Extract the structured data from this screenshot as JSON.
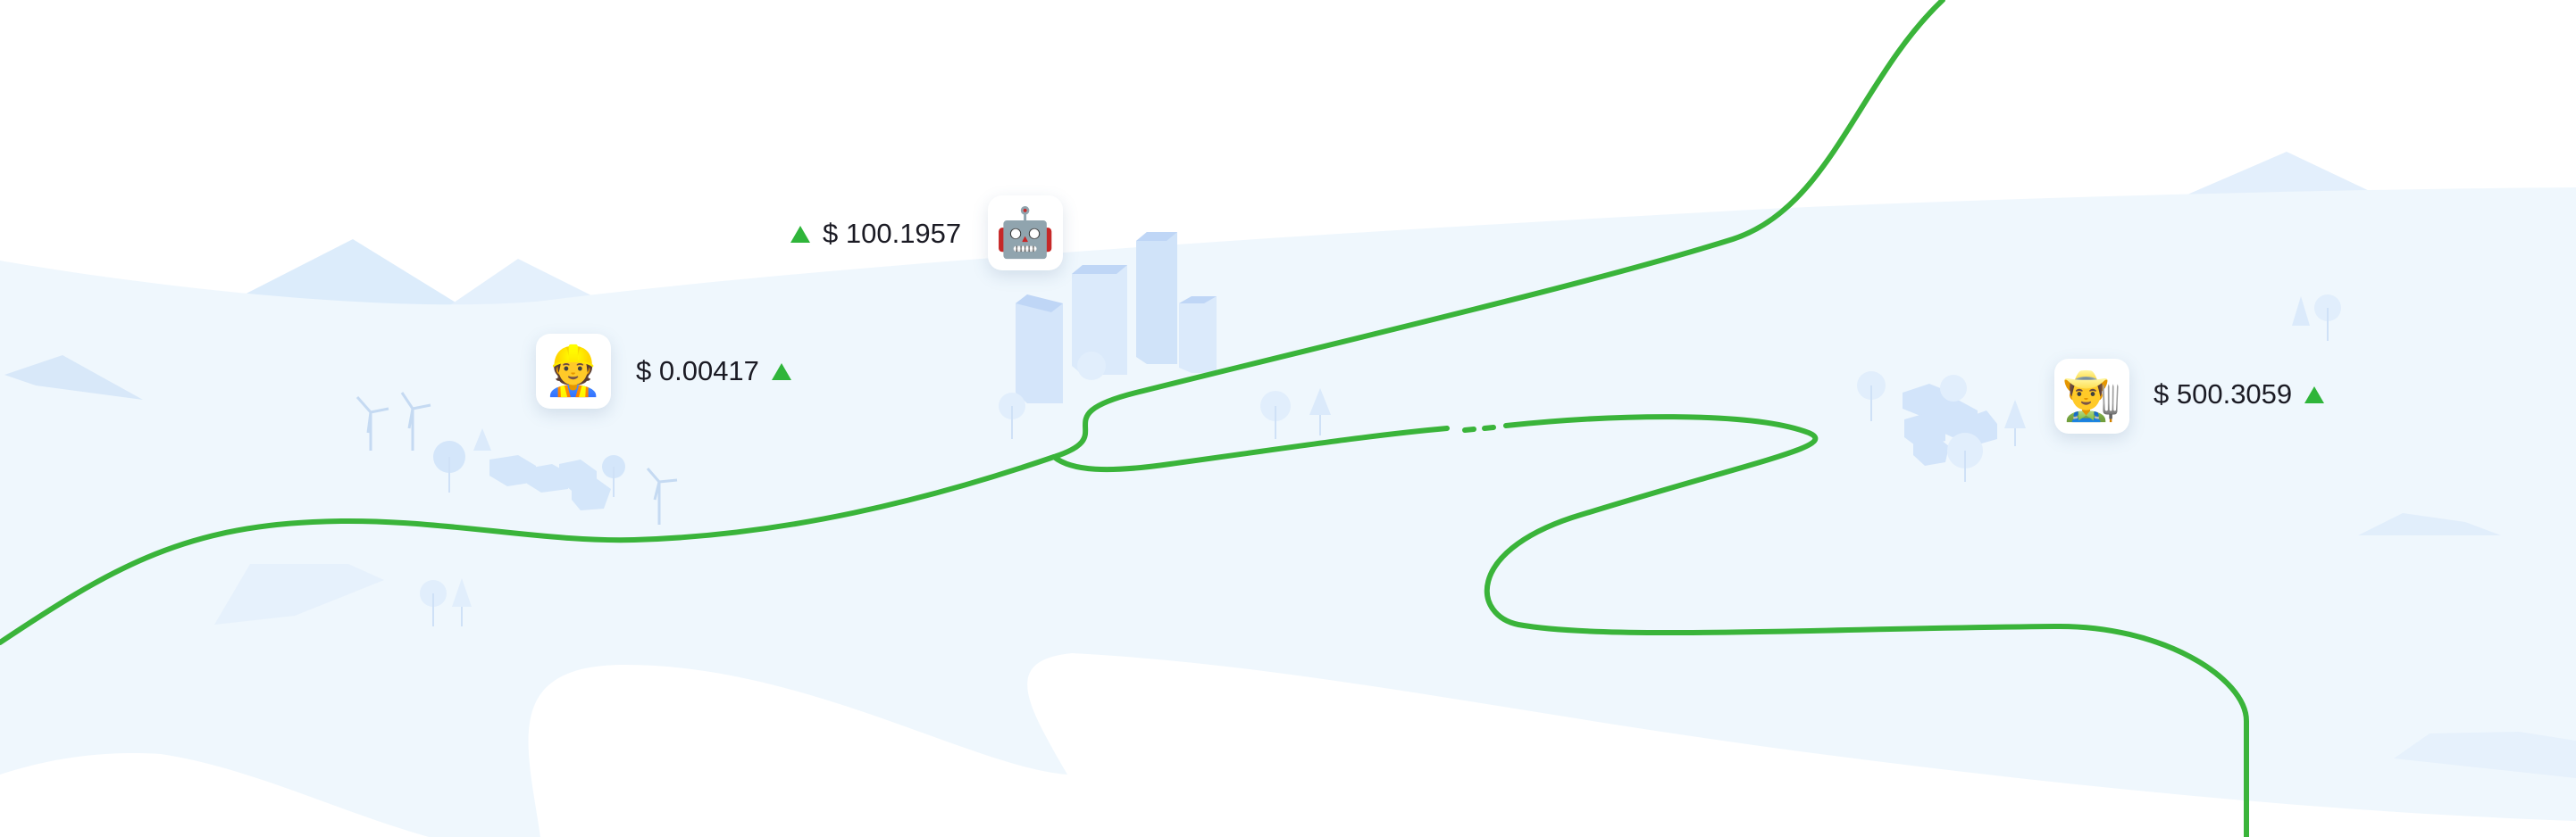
{
  "colors": {
    "trend_line": "#3ab43a",
    "arrow_up": "#2fb53a",
    "land": "#eff7fd",
    "mountain": "#dcecfb",
    "mountain_dark": "#b7d3f7",
    "building": "#d6e7fa",
    "text": "#1b1b24"
  },
  "markers": [
    {
      "id": "miner",
      "icon": "miner-icon",
      "emoji": "👷",
      "price": "$ 0.00417",
      "trend": "up"
    },
    {
      "id": "robot",
      "icon": "robot-icon",
      "emoji": "🤖",
      "price": "$ 100.1957",
      "trend": "up"
    },
    {
      "id": "farmer",
      "icon": "farmer-icon",
      "emoji": "👨‍🌾",
      "price": "$ 500.3059",
      "trend": "up"
    }
  ]
}
